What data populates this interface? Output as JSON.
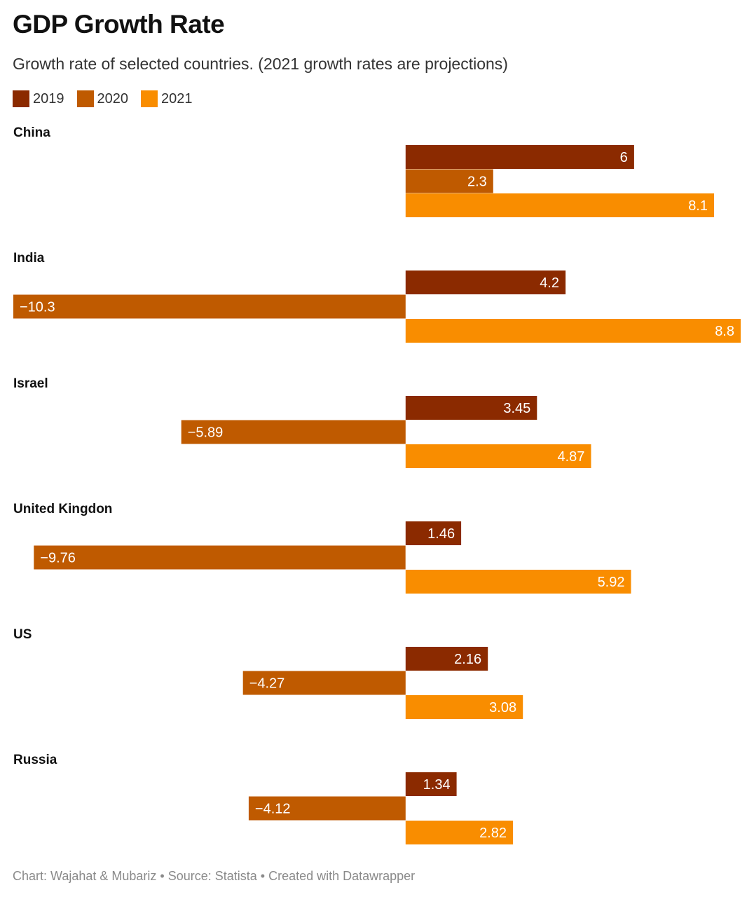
{
  "chart_data": {
    "type": "bar",
    "orientation": "horizontal",
    "title": "GDP Growth Rate",
    "subtitle": "Growth rate of selected countries. (2021 growth rates are projections)",
    "categories": [
      "China",
      "India",
      "Israel",
      "United Kingdon",
      "US",
      "Russia"
    ],
    "series": [
      {
        "name": "2019",
        "color": "#8b2a00",
        "values": [
          6,
          4.2,
          3.45,
          1.46,
          2.16,
          1.34
        ],
        "labels": [
          "6",
          "4.2",
          "3.45",
          "1.46",
          "2.16",
          "1.34"
        ]
      },
      {
        "name": "2020",
        "color": "#bf5a00",
        "values": [
          2.3,
          -10.3,
          -5.89,
          -9.76,
          -4.27,
          -4.12
        ],
        "labels": [
          "2.3",
          "−10.3",
          "−5.89",
          "−9.76",
          "−4.27",
          "−4.12"
        ]
      },
      {
        "name": "2021",
        "color": "#f98d00",
        "values": [
          8.1,
          8.8,
          4.87,
          5.92,
          3.08,
          2.82
        ],
        "labels": [
          "8.1",
          "8.8",
          "4.87",
          "5.92",
          "3.08",
          "2.82"
        ]
      }
    ],
    "xlim": [
      -10.3,
      8.8
    ],
    "grid": false,
    "legend": "top-left"
  },
  "footer": "Chart: Wajahat & Mubariz • Source: Statista • Created with Datawrapper"
}
